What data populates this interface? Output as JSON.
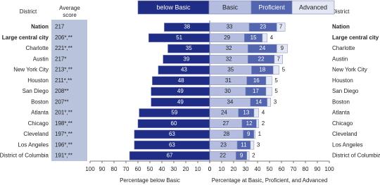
{
  "chart_data": {
    "type": "diverging_stacked_bar",
    "district_header": "District",
    "score_header": [
      "Average",
      "score"
    ],
    "categories": [
      "Nation",
      "Large central city",
      "Charlotte",
      "Austin",
      "New York City",
      "Houston",
      "San Diego",
      "Boston",
      "Atlanta",
      "Chicago",
      "Cleveland",
      "Los Angeles",
      "District of Columbia"
    ],
    "bold_rows": [
      0,
      1
    ],
    "scores": [
      "217",
      "206*,**",
      "221*,**",
      "217*",
      "213*,**",
      "211*,**",
      "208**",
      "207**",
      "201*,**",
      "198*,**",
      "197*,**",
      "196*,**",
      "191*,**"
    ],
    "series": [
      {
        "name": "below Basic",
        "color": "#1f2d86",
        "label_color": "#ffffff",
        "side": "left",
        "values": [
          38,
          51,
          35,
          39,
          43,
          48,
          49,
          49,
          59,
          60,
          63,
          63,
          67
        ]
      },
      {
        "name": "Basic",
        "color": "#b4bce0",
        "label_color": "#222222",
        "side": "right",
        "values": [
          33,
          29,
          32,
          32,
          35,
          31,
          30,
          34,
          24,
          27,
          28,
          23,
          22
        ]
      },
      {
        "name": "Proficient",
        "color": "#5265ae",
        "label_color": "#ffffff",
        "side": "right",
        "values": [
          23,
          15,
          24,
          22,
          18,
          16,
          17,
          14,
          13,
          12,
          9,
          11,
          9
        ]
      },
      {
        "name": "Advanced",
        "color": "#e3e6f3",
        "label_color": "#222222",
        "side": "right",
        "values": [
          7,
          4,
          9,
          7,
          5,
          5,
          5,
          3,
          4,
          2,
          1,
          3,
          2
        ]
      }
    ],
    "xlim": [
      0,
      100
    ],
    "xticks": [
      0,
      10,
      20,
      30,
      40,
      50,
      60,
      70,
      80,
      90,
      100
    ],
    "xlabel_left": "Percentage below Basic",
    "xlabel_right": "Percentage at Basic, Proficient, and Advanced"
  }
}
